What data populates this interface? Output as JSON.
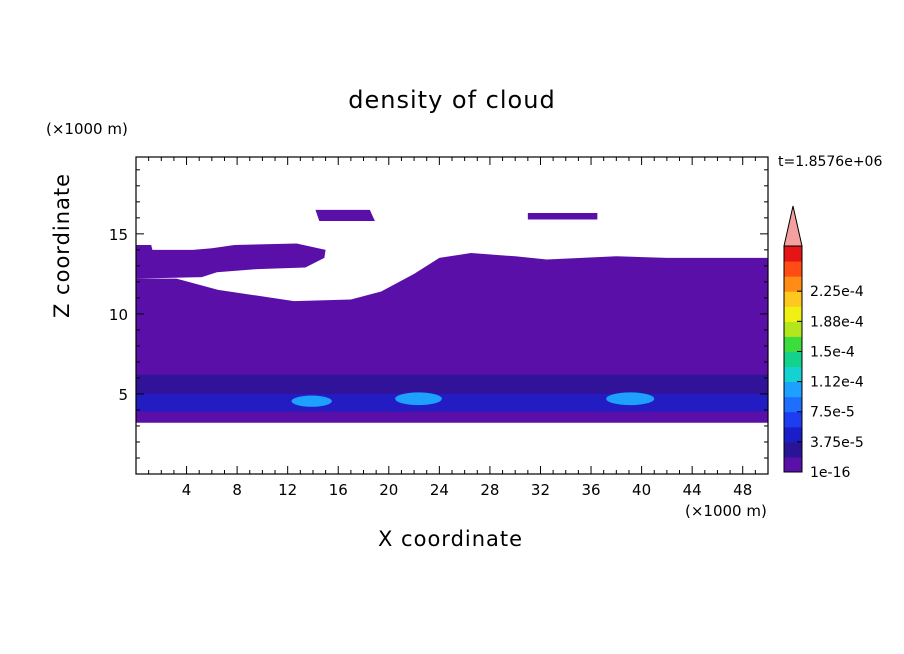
{
  "chart_data": {
    "type": "heatmap",
    "title": "density of cloud",
    "xlabel": "X coordinate",
    "ylabel": "Z coordinate",
    "x_unit_label": "(×1000 m)",
    "z_unit_label": "(×1000 m)",
    "time_label": "t=1.8576e+06",
    "xlim": [
      0,
      50
    ],
    "ylim": [
      0,
      19.8
    ],
    "x_ticks": [
      4,
      8,
      12,
      16,
      20,
      24,
      28,
      32,
      36,
      40,
      44,
      48
    ],
    "y_ticks": [
      5,
      10,
      15
    ],
    "colorbar": {
      "levels": [
        1e-16,
        1.875e-05,
        3.75e-05,
        5.625e-05,
        7.5e-05,
        9.375e-05,
        0.0001125,
        0.00013125,
        0.00015,
        0.00016875,
        0.0001875,
        0.00020625,
        0.000225,
        0.00024375
      ],
      "tick_labels": [
        "1e-16",
        "3.75e-5",
        "7.5e-5",
        "1.12e-4",
        "1.5e-4",
        "1.88e-4",
        "2.25e-4"
      ],
      "colors": [
        "#5a0fa8",
        "#2a1496",
        "#1a1ec8",
        "#1e3cf0",
        "#1e6eff",
        "#1ea0ff",
        "#14d2d2",
        "#14d28c",
        "#3cdc3c",
        "#b4e61e",
        "#f0f014",
        "#ffc81e",
        "#ff8c14",
        "#ff4b14",
        "#e61414"
      ],
      "extend_max_color": "#f5a0a0"
    },
    "regions": [
      {
        "name": "upper cloud patch A",
        "level": 0,
        "outline": [
          [
            14.2,
            16.5
          ],
          [
            18.5,
            16.5
          ],
          [
            18.9,
            15.8
          ],
          [
            14.5,
            15.8
          ]
        ]
      },
      {
        "name": "upper cloud patch B",
        "level": 0,
        "outline": [
          [
            31,
            16.3
          ],
          [
            36.5,
            16.3
          ],
          [
            36.5,
            15.9
          ],
          [
            31,
            15.9
          ]
        ]
      },
      {
        "name": "main cloud layer",
        "level": 0,
        "outline": [
          [
            0,
            14.3
          ],
          [
            1.2,
            14.3
          ],
          [
            1.3,
            14.0
          ],
          [
            4.5,
            14.0
          ],
          [
            6.0,
            14.1
          ],
          [
            7.8,
            14.3
          ],
          [
            12.7,
            14.4
          ],
          [
            15.0,
            14.0
          ],
          [
            14.9,
            13.5
          ],
          [
            13.4,
            12.9
          ],
          [
            9.6,
            12.8
          ],
          [
            6.4,
            12.6
          ],
          [
            5.2,
            12.3
          ],
          [
            0.0,
            12.2
          ]
        ]
      },
      {
        "name": "main cloud body",
        "level": 0,
        "outline": [
          [
            0,
            12.2
          ],
          [
            3.2,
            12.2
          ],
          [
            6.5,
            11.5
          ],
          [
            12.5,
            10.8
          ],
          [
            17.0,
            10.9
          ],
          [
            19.4,
            11.4
          ],
          [
            22.0,
            12.5
          ],
          [
            24.0,
            13.5
          ],
          [
            26.5,
            13.8
          ],
          [
            30.0,
            13.6
          ],
          [
            32.5,
            13.4
          ],
          [
            38.0,
            13.6
          ],
          [
            42.0,
            13.5
          ],
          [
            50,
            13.5
          ],
          [
            50,
            3.2
          ],
          [
            0,
            3.2
          ]
        ]
      }
    ],
    "enhanced_bands": [
      {
        "name": "layer 1",
        "level": 1,
        "z": [
          5.0,
          6.2
        ]
      },
      {
        "name": "layer 2",
        "level": 2,
        "z": [
          3.9,
          5.0
        ]
      },
      {
        "name": "core 1",
        "level": 5,
        "x": [
          12.3,
          15.5
        ],
        "z": [
          4.2,
          4.9
        ]
      },
      {
        "name": "core 2",
        "level": 5,
        "x": [
          20.5,
          24.2
        ],
        "z": [
          4.3,
          5.1
        ]
      },
      {
        "name": "core 3",
        "level": 5,
        "x": [
          37.2,
          41.0
        ],
        "z": [
          4.3,
          5.1
        ]
      }
    ]
  }
}
